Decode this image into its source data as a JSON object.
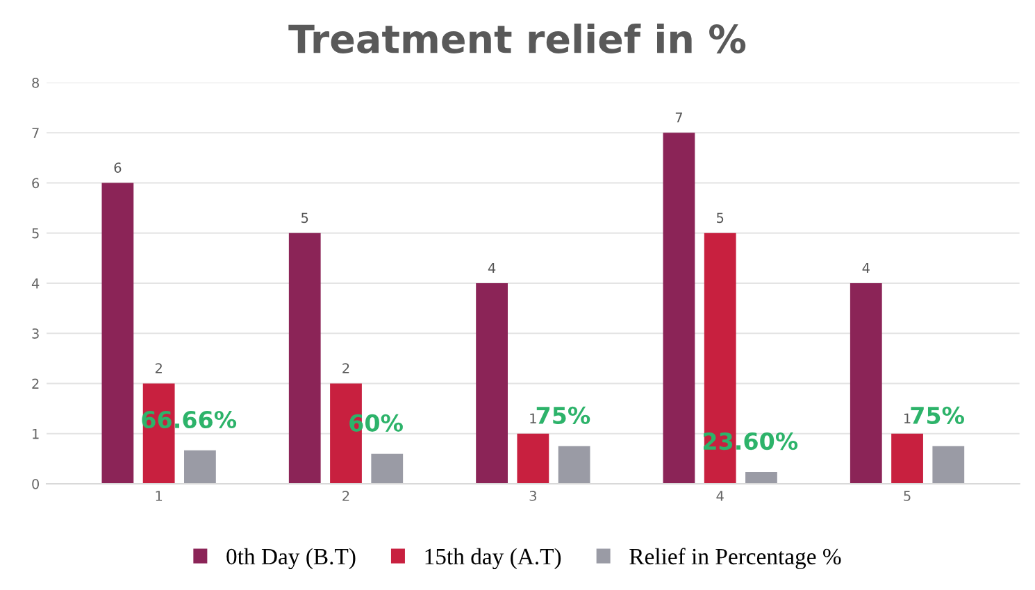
{
  "chart_data": {
    "type": "bar",
    "title": "Treatment relief in %",
    "categories": [
      "1",
      "2",
      "3",
      "4",
      "5"
    ],
    "series": [
      {
        "name": "0th Day (B.T)",
        "color": "#8b2457",
        "values": [
          6,
          5,
          4,
          7,
          4
        ],
        "value_labels": [
          "6",
          "5",
          "4",
          "7",
          "4"
        ]
      },
      {
        "name": "15th day (A.T)",
        "color": "#c8203f",
        "values": [
          2,
          2,
          1,
          5,
          1
        ],
        "value_labels": [
          "2",
          "2",
          "1",
          "5",
          "1"
        ]
      },
      {
        "name": "Relief in Percentage %",
        "color": "#9a9ba5",
        "values": [
          0.6666,
          0.6,
          0.75,
          0.236,
          0.75
        ],
        "value_labels": [
          "66.66%",
          "60%",
          "75%",
          "23.60%",
          "75%"
        ]
      }
    ],
    "ylim": [
      0,
      8
    ],
    "yticks": [
      0,
      1,
      2,
      3,
      4,
      5,
      6,
      7,
      8
    ],
    "grid": "y",
    "legend": "bottom"
  }
}
